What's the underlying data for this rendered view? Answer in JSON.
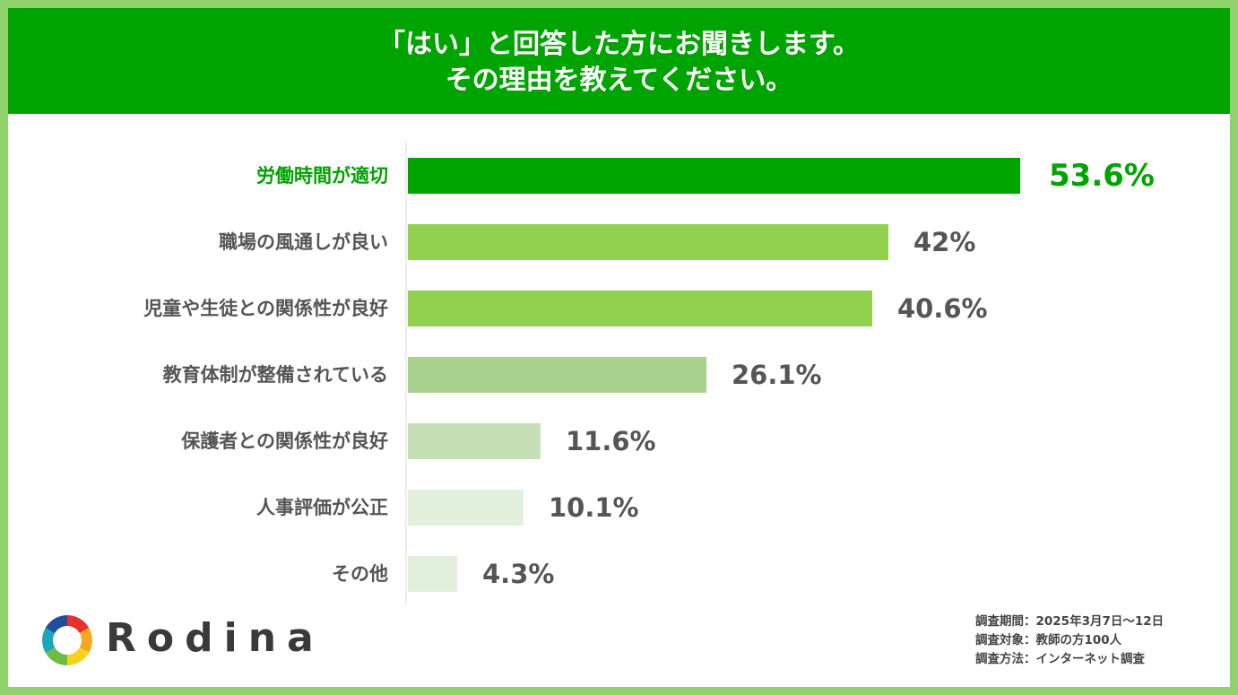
{
  "header": {
    "line1": "「はい」と回答した方にお聞きします。",
    "line2": "その理由を教えてください。"
  },
  "chart_data": {
    "type": "bar",
    "orientation": "horizontal",
    "title": "「はい」と回答した方にお聞きします。その理由を教えてください。",
    "categories": [
      "労働時間が適切",
      "職場の風通しが良い",
      "児童や生徒との関係性が良好",
      "教育体制が整備されている",
      "保護者との関係性が良好",
      "人事評価が公正",
      "その他"
    ],
    "values": [
      53.6,
      42,
      40.6,
      26.1,
      11.6,
      10.1,
      4.3
    ],
    "value_labels": [
      "53.6%",
      "42%",
      "40.6%",
      "26.1%",
      "11.6%",
      "10.1%",
      "4.3%"
    ],
    "unit": "%",
    "xlim": [
      0,
      100
    ],
    "grid": false,
    "legend": "none",
    "colors": [
      "#00a400",
      "#92d050",
      "#92d050",
      "#a9d18e",
      "#c5e0b4",
      "#e2efda",
      "#e2efda"
    ],
    "highlight_index": 0,
    "highlight_color": "#00a400"
  },
  "logo": {
    "text": "Rodina",
    "icon": "aperture-ring-icon"
  },
  "survey": {
    "period": "調査期間：2025年3月7日～12日",
    "target": "調査対象：教師の方100人",
    "method": "調査方法：インターネット調査"
  }
}
